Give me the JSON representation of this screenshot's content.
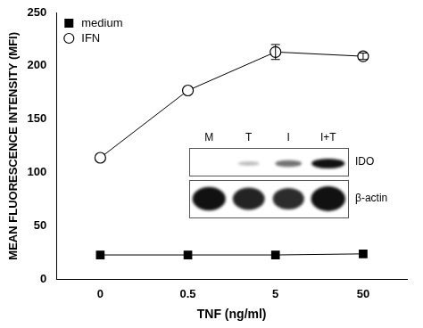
{
  "chart_data": {
    "type": "line",
    "x_label": "TNF (ng/ml)",
    "y_label": "MEAN FLUORESCENCE INTENSITY (MFI)",
    "categories": [
      "0",
      "0.5",
      "5",
      "50"
    ],
    "series": [
      {
        "name": "medium",
        "color": "#000000",
        "marker": "square",
        "values": [
          23,
          23,
          23,
          24
        ]
      },
      {
        "name": "IFN",
        "color": "#000000",
        "marker": "circle",
        "values": [
          114,
          177,
          213,
          209
        ],
        "errors": [
          null,
          null,
          7,
          3
        ]
      }
    ],
    "ylim": [
      0,
      250
    ],
    "yticks": [
      0,
      50,
      100,
      150,
      200,
      250
    ],
    "grid": false,
    "legend": "top-left",
    "inset": {
      "lanes": [
        "M",
        "T",
        "I",
        "I+T"
      ],
      "rows": [
        "IDO",
        "β-actin"
      ]
    }
  }
}
